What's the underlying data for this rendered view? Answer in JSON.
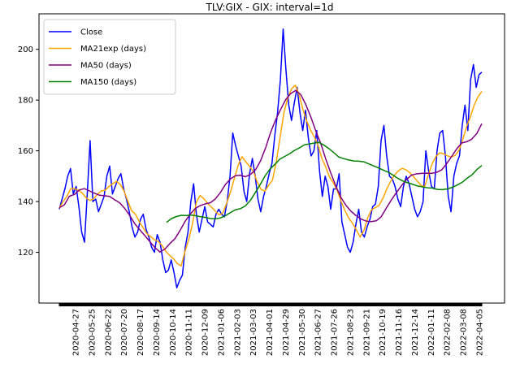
{
  "chart_data": {
    "type": "line",
    "title": "TLV:GIX - GIX: interval=1d",
    "xlabel": "",
    "ylabel": "",
    "ylim": [
      100,
      214
    ],
    "yticks": [
      120,
      140,
      160,
      180,
      200
    ],
    "xticks": [
      "2020-04-27",
      "2020-05-25",
      "2020-06-22",
      "2020-07-20",
      "2020-08-17",
      "2020-09-14",
      "2020-10-14",
      "2020-11-11",
      "2020-12-09",
      "2021-01-06",
      "2021-02-03",
      "2021-03-03",
      "2021-04-01",
      "2021-04-29",
      "2021-05-30",
      "2021-06-27",
      "2021-07-26",
      "2021-08-23",
      "2021-09-21",
      "2021-10-19",
      "2021-11-16",
      "2021-12-14",
      "2022-01-11",
      "2022-02-08",
      "2022-03-08",
      "2022-04-05"
    ],
    "grid": false,
    "legend": "top-left",
    "series": [
      {
        "name": "Close",
        "color": "#0000ff",
        "values": [
          137,
          141,
          145,
          150,
          153,
          143,
          146,
          138,
          128,
          124,
          143,
          164,
          140,
          141,
          136,
          139,
          142,
          150,
          154,
          143,
          146,
          149,
          151,
          145,
          141,
          136,
          130,
          126,
          128,
          133,
          135,
          129,
          126,
          122,
          120,
          127,
          124,
          117,
          112,
          113,
          117,
          112,
          106,
          109,
          111,
          122,
          128,
          140,
          147,
          135,
          128,
          133,
          138,
          132,
          131,
          130,
          135,
          137,
          135,
          134,
          140,
          150,
          167,
          162,
          158,
          154,
          144,
          140,
          151,
          157,
          150,
          141,
          136,
          142,
          146,
          151,
          155,
          166,
          175,
          188,
          208,
          192,
          178,
          172,
          179,
          185,
          175,
          168,
          176,
          165,
          158,
          160,
          168,
          152,
          142,
          150,
          146,
          137,
          145,
          145,
          151,
          132,
          127,
          122,
          120,
          124,
          131,
          137,
          128,
          126,
          130,
          133,
          138,
          139,
          146,
          164,
          170,
          158,
          150,
          149,
          146,
          141,
          138,
          146,
          150,
          147,
          142,
          137,
          134,
          136,
          140,
          160,
          152,
          146,
          145,
          160,
          167,
          168,
          158,
          142,
          136,
          150,
          155,
          158,
          170,
          178,
          168,
          188,
          194,
          185,
          190,
          191
        ]
      },
      {
        "name": "MA21exp (days)",
        "color": "#ffa500",
        "values": [
          137.4,
          140,
          142.1,
          145.1,
          145.1,
          144.5,
          143.4,
          141.6,
          140.4,
          141.1,
          142.8,
          144.2,
          144.4,
          145.9,
          147,
          148,
          146.8,
          144.2,
          140.2,
          136.4,
          135,
          132.1,
          129.7,
          127.4,
          126.2,
          124.9,
          124.3,
          122.7,
          120.3,
          118.8,
          117.5,
          115.6,
          114.6,
          120.2,
          125,
          131.4,
          139.7,
          142.4,
          141.1,
          139.2,
          137.8,
          136.2,
          134.7,
          135.5,
          139.5,
          143.9,
          149.2,
          154.4,
          157.7,
          155.7,
          153.9,
          151.8,
          147.7,
          144.8,
          144.1,
          146.5,
          148.4,
          155.6,
          165.3,
          175,
          180.8,
          184.4,
          185.9,
          182.1,
          176.4,
          171.7,
          168.2,
          165.5,
          162,
          157,
          153.6,
          149.6,
          147.4,
          144.4,
          140.2,
          136.6,
          133.6,
          131.5,
          129,
          126,
          128.5,
          133.5,
          136.7,
          137.6,
          138.5,
          141.2,
          144.9,
          147.9,
          150.3,
          152,
          153.1,
          152.6,
          151.5,
          149.9,
          148.2,
          146.4,
          145.9,
          150.7,
          155.1,
          157.9,
          159.2,
          158.8,
          158,
          157.6,
          158.2,
          160.2,
          164.5,
          169.6,
          173.3,
          178,
          181.3,
          183.4
        ]
      },
      {
        "name": "MA50 (days)",
        "color": "#800080",
        "values": [
          137.6,
          138.7,
          142.1,
          142.8,
          144.6,
          145.1,
          144.2,
          143.3,
          142.5,
          142.3,
          142,
          140.7,
          139.5,
          137.3,
          134.5,
          131.3,
          128.9,
          126.6,
          124.2,
          121.9,
          120.1,
          121.3,
          123.5,
          125.4,
          128.6,
          132.2,
          135,
          137.2,
          138.4,
          139.1,
          139.5,
          141,
          143.5,
          146.7,
          148.9,
          150.2,
          150.4,
          149.8,
          150.7,
          152.5,
          156,
          161.1,
          167.2,
          172.2,
          176.3,
          180.2,
          182.6,
          183.8,
          182.2,
          178.3,
          173.4,
          167.8,
          162.8,
          156.6,
          151.1,
          146,
          141.6,
          138.5,
          136.2,
          134.5,
          133.1,
          132.3,
          132.1,
          132.4,
          134,
          137.4,
          140.6,
          143.5,
          146.2,
          148.6,
          150.4,
          150.9,
          151.1,
          151.2,
          151.1,
          151.5,
          152.5,
          154.9,
          157.8,
          160.7,
          163.1,
          163.6,
          164.6,
          166.8,
          170.7
        ]
      },
      {
        "name": "MA150 (days)",
        "color": "#008000",
        "values": [
          131.8,
          133.3,
          134.1,
          134.6,
          134.5,
          134.7,
          134.4,
          134,
          133.7,
          133.3,
          133.2,
          133.6,
          134.5,
          135.7,
          136.8,
          137.2,
          138.3,
          140.4,
          143.5,
          146.7,
          150.1,
          152.8,
          154.7,
          156.7,
          157.8,
          158.9,
          160.2,
          161.2,
          162.4,
          162.7,
          163.1,
          163.3,
          162.2,
          160.8,
          159.2,
          157.5,
          156.9,
          156.4,
          156,
          155.9,
          155.7,
          154.9,
          154.1,
          153.3,
          152.4,
          151.6,
          150.4,
          149.1,
          148.1,
          147.4,
          146.8,
          146.1,
          145.8,
          145.4,
          145.3,
          144.8,
          144.7,
          145,
          145.6,
          146.5,
          147.6,
          149.2,
          150.5,
          152.6,
          154.2
        ]
      }
    ]
  }
}
